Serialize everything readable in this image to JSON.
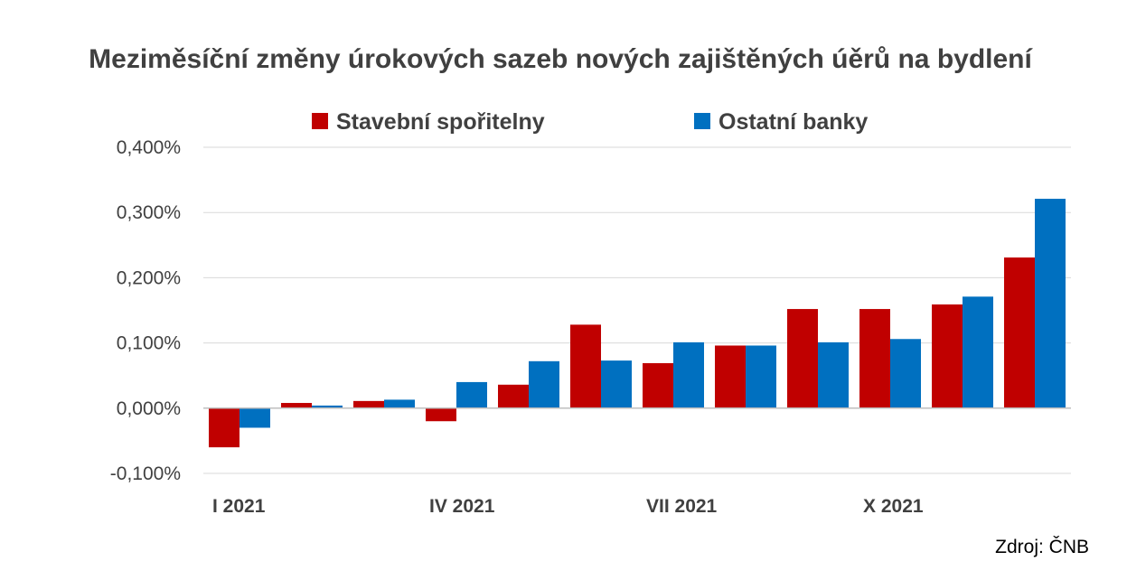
{
  "chart_data": {
    "type": "bar",
    "title": "Meziměsíční změny úrokových sazeb nových zajištěných úěrů na bydlení",
    "categories": [
      "I 2021",
      "",
      "",
      "IV 2021",
      "",
      "",
      "VII 2021",
      "",
      "",
      "X 2021",
      "",
      ""
    ],
    "series": [
      {
        "name": "Stavební spořitelny",
        "color": "#C00000",
        "values": [
          -0.06,
          0.008,
          0.011,
          -0.02,
          0.036,
          0.128,
          0.069,
          0.096,
          0.152,
          0.152,
          0.159,
          0.231
        ]
      },
      {
        "name": "Ostatní banky",
        "color": "#0070C0",
        "values": [
          -0.03,
          0.004,
          0.013,
          0.04,
          0.072,
          0.073,
          0.101,
          0.096,
          0.101,
          0.106,
          0.171,
          0.321
        ]
      }
    ],
    "ylim": [
      -0.1,
      0.4
    ],
    "yticks": [
      -0.1,
      0.0,
      0.1,
      0.2,
      0.3,
      0.4
    ],
    "ytick_labels": [
      "-0,100%",
      "0,000%",
      "0,100%",
      "0,200%",
      "0,300%",
      "0,400%"
    ],
    "grid": true,
    "legend": "top",
    "source": "Zdroj: ČNB"
  }
}
